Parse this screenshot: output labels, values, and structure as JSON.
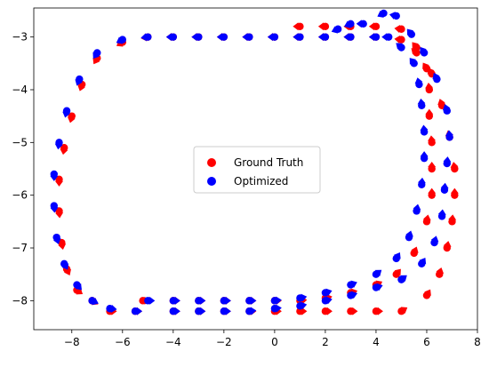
{
  "chart_data": {
    "type": "scatter",
    "title": "",
    "xlabel": "",
    "ylabel": "",
    "xlim": [
      -9.5,
      8
    ],
    "ylim": [
      -8.55,
      -2.45
    ],
    "xticks": [
      "−8",
      "−6",
      "−4",
      "−2",
      "0",
      "2",
      "4",
      "6",
      "8"
    ],
    "yticks": [
      "−3",
      "−4",
      "−5",
      "−6",
      "−7",
      "−8"
    ],
    "grid": false,
    "legend": {
      "placement": "center",
      "entries": [
        {
          "label": "Ground Truth",
          "color": "#ff0000"
        },
        {
          "label": "Optimized",
          "color": "#0000ff"
        }
      ]
    },
    "series": [
      {
        "name": "Ground Truth",
        "color": "#ff0000",
        "marker": "circle-with-arrow",
        "x": [
          -5.2,
          -4.0,
          -3.0,
          -2.0,
          -1.0,
          0.0,
          1.0,
          2.0,
          3.0,
          4.0,
          4.8,
          5.5,
          6.0,
          6.2,
          6.2,
          6.2,
          6.1,
          6.1,
          6.0,
          5.6,
          5.0,
          4.0,
          3.0,
          2.0,
          1.0,
          0.0,
          -1.0,
          -2.0,
          -3.0,
          -4.0,
          -5.0,
          -6.0,
          -7.0,
          -7.6,
          -8.0,
          -8.3,
          -8.5,
          -8.5,
          -8.4,
          -8.2,
          -7.8,
          -7.2,
          -6.5,
          -5.5,
          -4.0,
          -3.0,
          -2.0,
          -1.0,
          0.0,
          1.0,
          2.0,
          3.0,
          4.0,
          5.0,
          6.0,
          6.5,
          6.8,
          7.0,
          7.1,
          7.1,
          6.9,
          6.6,
          6.2,
          5.6,
          5.0,
          4.0,
          3.0,
          2.0,
          1.0
        ],
        "y": [
          -8.0,
          -8.0,
          -8.0,
          -8.0,
          -8.0,
          -8.0,
          -8.0,
          -7.95,
          -7.85,
          -7.7,
          -7.5,
          -7.1,
          -6.5,
          -6.0,
          -5.5,
          -5.0,
          -4.5,
          -4.0,
          -3.6,
          -3.3,
          -3.05,
          -3.0,
          -3.0,
          -3.0,
          -3.0,
          -3.0,
          -3.0,
          -3.0,
          -3.0,
          -3.0,
          -3.0,
          -3.1,
          -3.4,
          -3.9,
          -4.5,
          -5.1,
          -5.7,
          -6.3,
          -6.9,
          -7.4,
          -7.8,
          -8.0,
          -8.2,
          -8.2,
          -8.2,
          -8.2,
          -8.2,
          -8.2,
          -8.2,
          -8.2,
          -8.2,
          -8.2,
          -8.2,
          -8.2,
          -7.9,
          -7.5,
          -7.0,
          -6.5,
          -6.0,
          -5.5,
          -4.9,
          -4.3,
          -3.7,
          -3.2,
          -2.85,
          -2.8,
          -2.8,
          -2.8,
          -2.8
        ]
      },
      {
        "name": "Optimized",
        "color": "#0000ff",
        "marker": "circle-with-arrow",
        "x": [
          -5.0,
          -4.0,
          -3.0,
          -2.0,
          -1.0,
          0.0,
          1.0,
          2.0,
          3.0,
          4.0,
          4.8,
          5.3,
          5.6,
          5.8,
          5.9,
          5.9,
          5.8,
          5.7,
          5.5,
          5.0,
          4.5,
          4.0,
          3.0,
          2.0,
          1.0,
          0.0,
          -1.0,
          -2.0,
          -3.0,
          -4.0,
          -5.0,
          -6.0,
          -7.0,
          -7.7,
          -8.2,
          -8.5,
          -8.7,
          -8.7,
          -8.6,
          -8.3,
          -7.8,
          -7.2,
          -6.5,
          -5.5,
          -4.0,
          -3.0,
          -2.0,
          -1.0,
          0.0,
          1.0,
          2.0,
          3.0,
          4.0,
          5.0,
          5.8,
          6.3,
          6.6,
          6.7,
          6.8,
          6.9,
          6.8,
          6.4,
          5.9,
          5.4,
          4.8,
          4.3,
          3.5,
          3.0,
          2.5
        ],
        "y": [
          -8.0,
          -8.0,
          -8.0,
          -8.0,
          -8.0,
          -8.0,
          -7.95,
          -7.85,
          -7.7,
          -7.5,
          -7.2,
          -6.8,
          -6.3,
          -5.8,
          -5.3,
          -4.8,
          -4.3,
          -3.9,
          -3.5,
          -3.2,
          -3.0,
          -3.0,
          -3.0,
          -3.0,
          -3.0,
          -3.0,
          -3.0,
          -3.0,
          -3.0,
          -3.0,
          -3.0,
          -3.05,
          -3.3,
          -3.8,
          -4.4,
          -5.0,
          -5.6,
          -6.2,
          -6.8,
          -7.3,
          -7.7,
          -8.0,
          -8.15,
          -8.2,
          -8.2,
          -8.2,
          -8.2,
          -8.2,
          -8.15,
          -8.1,
          -8.0,
          -7.9,
          -7.75,
          -7.6,
          -7.3,
          -6.9,
          -6.4,
          -5.9,
          -5.4,
          -4.9,
          -4.4,
          -3.8,
          -3.3,
          -2.95,
          -2.6,
          -2.55,
          -2.75,
          -2.75,
          -2.85
        ]
      }
    ]
  }
}
